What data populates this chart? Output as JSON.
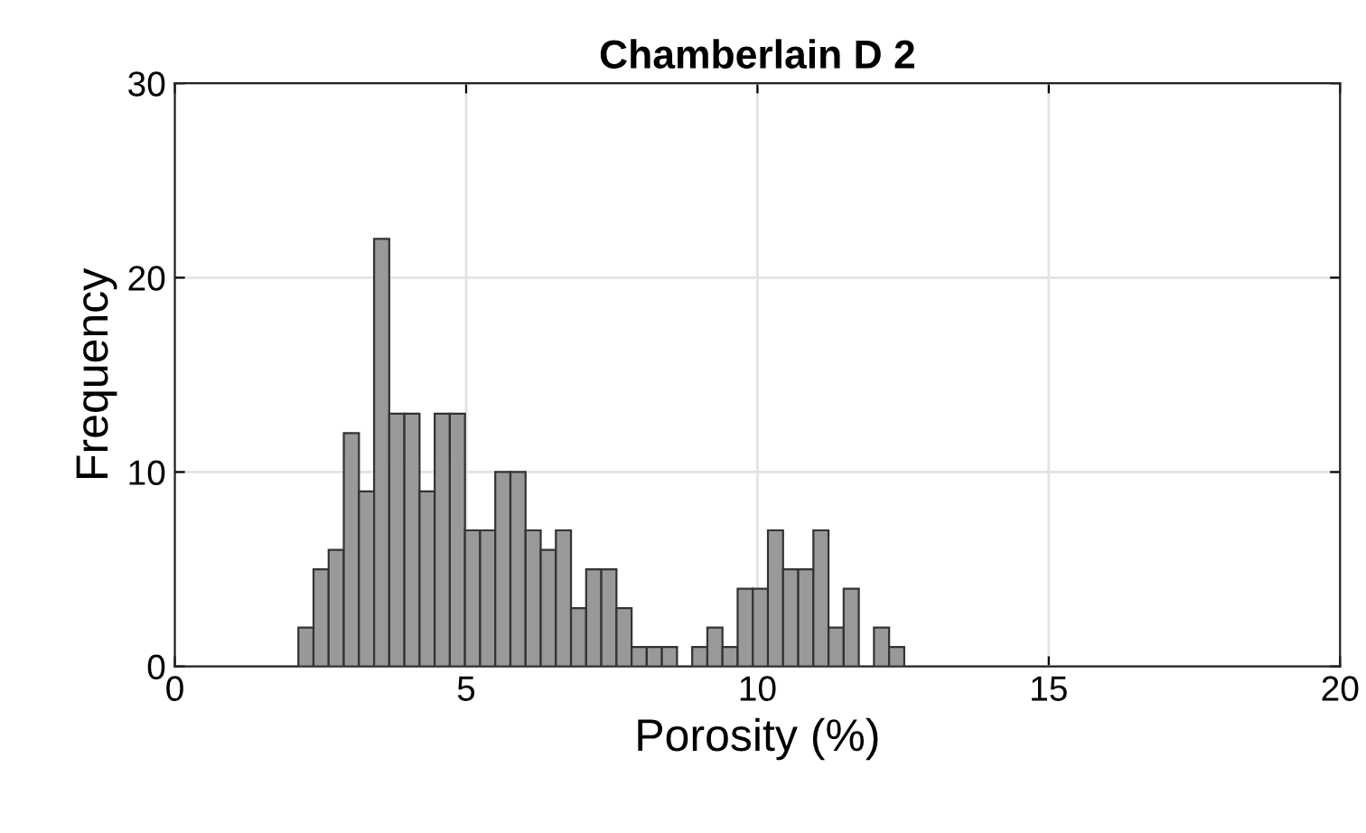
{
  "chart_data": {
    "type": "histogram",
    "title": "Chamberlain D 2",
    "xlabel": "Porosity (%)",
    "ylabel": "Frequency",
    "bins": [
      2.12,
      2.38,
      2.64,
      2.9,
      3.16,
      3.42,
      3.68,
      3.94,
      4.2,
      4.46,
      4.72,
      4.98,
      5.24,
      5.5,
      5.76,
      6.02,
      6.28,
      6.54,
      6.8,
      7.06,
      7.32,
      7.58,
      7.84,
      8.1,
      8.36,
      8.62,
      8.88,
      9.14,
      9.4,
      9.66,
      9.92,
      10.18,
      10.44,
      10.7,
      10.96,
      11.22,
      11.48,
      11.74,
      12.0,
      12.26,
      12.52
    ],
    "values": [
      2,
      5,
      6,
      12,
      9,
      22,
      13,
      13,
      9,
      13,
      13,
      7,
      7,
      10,
      10,
      7,
      6,
      7,
      3,
      5,
      5,
      3,
      1,
      1,
      1,
      0,
      1,
      2,
      1,
      4,
      4,
      7,
      5,
      5,
      7,
      2,
      4,
      0,
      2,
      1
    ],
    "color": "#999999",
    "xlim": [
      0,
      20
    ],
    "xticks": [
      0,
      5,
      10,
      15,
      20
    ],
    "ylim": [
      0,
      30
    ],
    "yticks": [
      0,
      10,
      20,
      30
    ],
    "grid": true
  }
}
